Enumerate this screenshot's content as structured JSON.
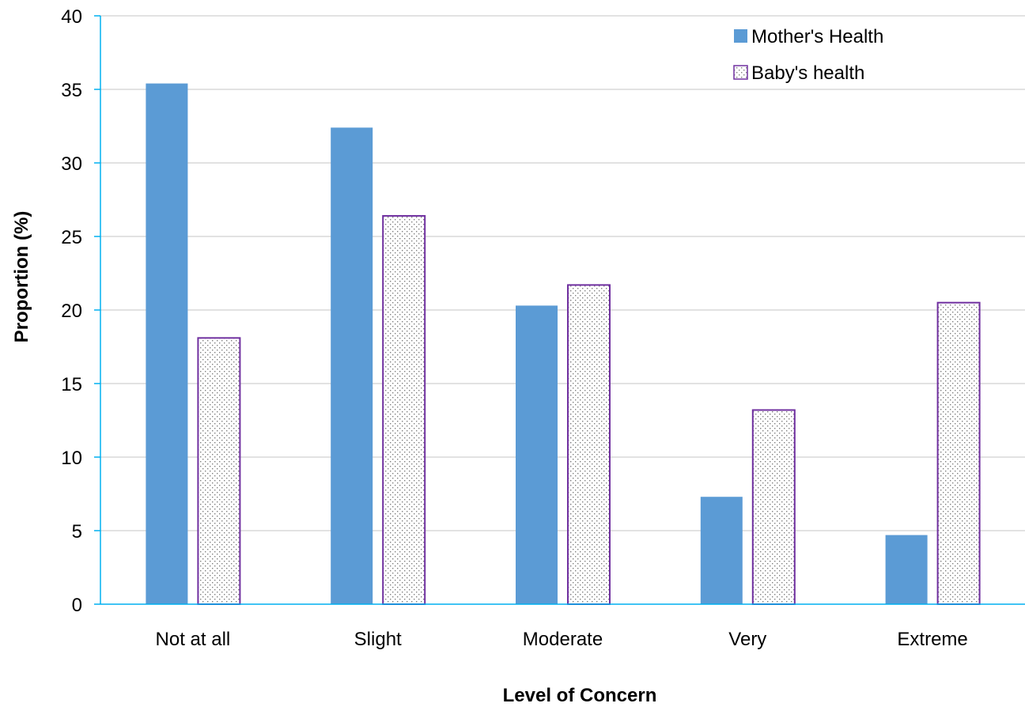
{
  "chart_data": {
    "type": "bar",
    "title": "",
    "xlabel": "Level of Concern",
    "ylabel": "Proportion (%)",
    "categories": [
      "Not at all",
      "Slight",
      "Moderate",
      "Very",
      "Extreme"
    ],
    "series": [
      {
        "name": "Mother's Health",
        "values": [
          35.4,
          32.4,
          20.3,
          7.3,
          4.7
        ],
        "color": "#5b9bd5",
        "fill": "solid"
      },
      {
        "name": "Baby's health",
        "values": [
          18.1,
          26.4,
          21.7,
          13.2,
          20.5
        ],
        "color": "#7030a0",
        "fill": "dotted-pattern"
      }
    ],
    "ylim": [
      0,
      40
    ],
    "yticks": [
      0,
      5,
      10,
      15,
      20,
      25,
      30,
      35,
      40
    ],
    "grid": true,
    "legend_position": "top-right",
    "axis_color": "#00b0f0",
    "grid_color": "#d9d9d9"
  }
}
